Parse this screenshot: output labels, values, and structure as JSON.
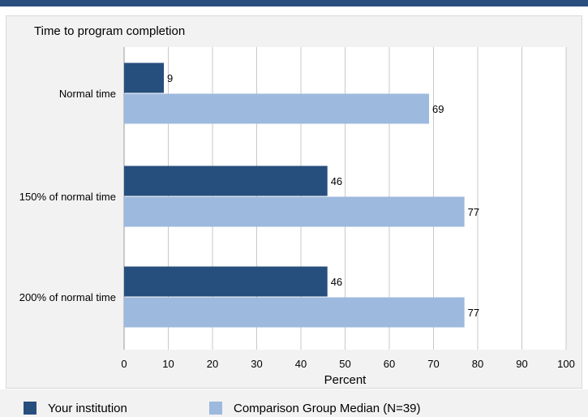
{
  "colors": {
    "series_dark": "#274f7d",
    "series_light": "#9db9de",
    "gridline": "#c8c8c8"
  },
  "chart_data": {
    "type": "bar",
    "orientation": "horizontal",
    "title": "Time to program completion",
    "xlabel": "Percent",
    "categories": [
      "Normal time",
      "150% of normal time",
      "200% of normal time"
    ],
    "series": [
      {
        "name": "Your institution",
        "values": [
          9,
          46,
          46
        ]
      },
      {
        "name": "Comparison Group Median (N=39)",
        "values": [
          69,
          77,
          77
        ]
      }
    ],
    "xlim": [
      0,
      100
    ],
    "xticks": [
      "0",
      "10",
      "20",
      "30",
      "40",
      "50",
      "60",
      "70",
      "80",
      "90",
      "100"
    ],
    "grid": true,
    "legend_position": "bottom"
  },
  "legend": {
    "items": [
      "Your institution",
      "Comparison Group Median (N=39)"
    ]
  }
}
